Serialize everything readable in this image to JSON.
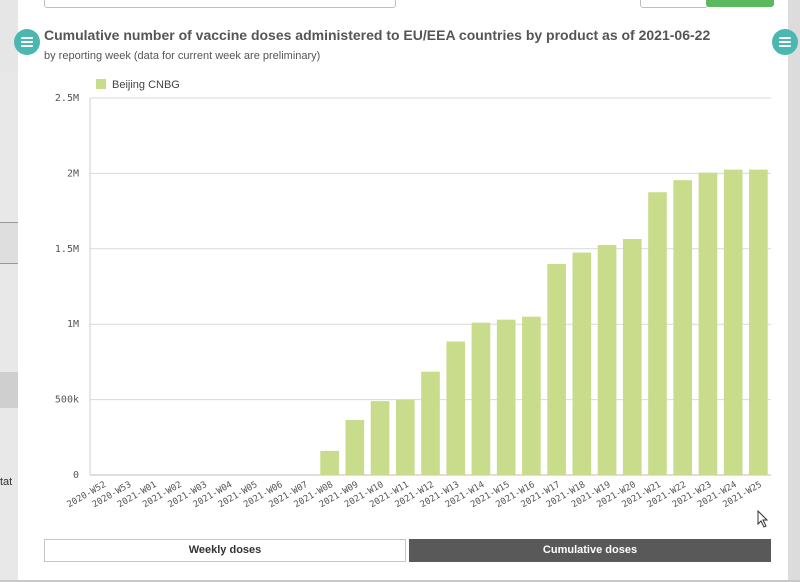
{
  "sidebar": {
    "partial_text": "tat"
  },
  "chart_data": {
    "type": "bar",
    "title": "Cumulative number of vaccine doses administered to EU/EEA countries by product as of 2021-06-22",
    "subtitle": "by reporting week (data for current week are preliminary)",
    "categories": [
      "2020-W52",
      "2020-W53",
      "2021-W01",
      "2021-W02",
      "2021-W03",
      "2021-W04",
      "2021-W05",
      "2021-W06",
      "2021-W07",
      "2021-W08",
      "2021-W09",
      "2021-W10",
      "2021-W11",
      "2021-W12",
      "2021-W13",
      "2021-W14",
      "2021-W15",
      "2021-W16",
      "2021-W17",
      "2021-W18",
      "2021-W19",
      "2021-W20",
      "2021-W21",
      "2021-W22",
      "2021-W23",
      "2021-W24",
      "2021-W25"
    ],
    "series": [
      {
        "name": "Beijing CNBG",
        "color": "#c9dc8c",
        "values": [
          0,
          0,
          0,
          0,
          0,
          0,
          0,
          0,
          0,
          160000,
          365000,
          490000,
          500000,
          685000,
          885000,
          1010000,
          1030000,
          1050000,
          1400000,
          1475000,
          1525000,
          1565000,
          1875000,
          1955000,
          2005000,
          2025000,
          2025000
        ]
      }
    ],
    "y_ticks": [
      {
        "value": 0,
        "label": "0"
      },
      {
        "value": 500000,
        "label": "500k"
      },
      {
        "value": 1000000,
        "label": "1M"
      },
      {
        "value": 1500000,
        "label": "1.5M"
      },
      {
        "value": 2000000,
        "label": "2M"
      },
      {
        "value": 2500000,
        "label": "2.5M"
      }
    ],
    "ylim": [
      0,
      2500000
    ],
    "grid": true,
    "legend_position": "top-left"
  },
  "buttons": {
    "weekly": "Weekly doses",
    "cumulative": "Cumulative doses"
  },
  "colors": {
    "accent": "#4ab8b0",
    "active_button": "#595959",
    "top_button": "#5cb85c"
  }
}
